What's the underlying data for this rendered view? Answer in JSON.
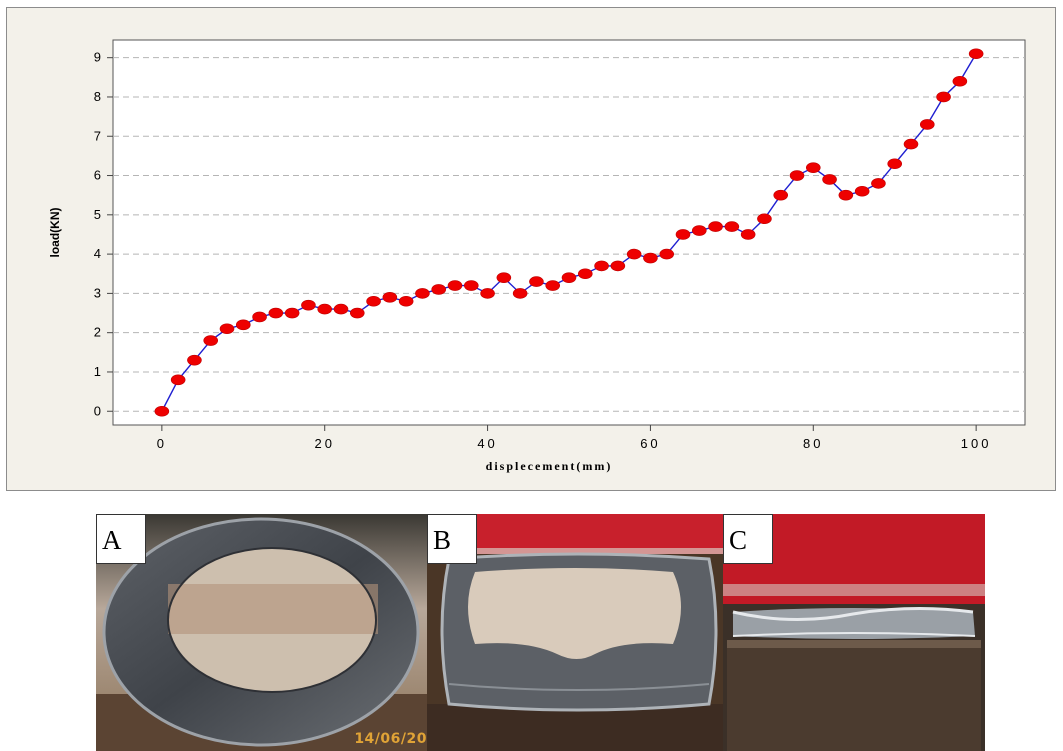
{
  "chart_data": {
    "type": "line",
    "title": "",
    "xlabel": "displecement(mm)",
    "ylabel": "load(KN)",
    "xlim": [
      -6,
      106
    ],
    "ylim": [
      -0.35,
      9.45
    ],
    "xticks": [
      0,
      20,
      40,
      60,
      80,
      100
    ],
    "yticks": [
      0,
      1,
      2,
      3,
      4,
      5,
      6,
      7,
      8,
      9
    ],
    "grid": "horizontal dashed",
    "line_color": "#1f1fd1",
    "marker_color": "#ee0000",
    "series": [
      {
        "x": [
          0,
          2,
          4,
          6,
          8,
          10,
          12,
          14,
          16,
          18,
          20,
          22,
          24,
          26,
          28,
          30,
          32,
          34,
          36,
          38,
          40,
          42,
          44,
          46,
          48,
          50,
          52,
          54,
          56,
          58,
          60,
          62,
          64,
          66,
          68,
          70,
          72,
          74,
          76,
          78,
          80,
          82,
          84,
          86,
          88,
          90,
          92,
          94,
          96,
          98,
          100
        ],
        "values": [
          0,
          0.8,
          1.3,
          1.8,
          2.1,
          2.2,
          2.4,
          2.5,
          2.5,
          2.7,
          2.6,
          2.6,
          2.5,
          2.8,
          2.9,
          2.8,
          3.0,
          3.1,
          3.2,
          3.2,
          3.0,
          3.4,
          3.0,
          3.3,
          3.2,
          3.4,
          3.5,
          3.7,
          3.7,
          4.0,
          3.9,
          4.0,
          4.5,
          4.6,
          4.7,
          4.7,
          4.5,
          4.9,
          5.5,
          6.0,
          6.2,
          5.9,
          5.5,
          5.6,
          5.8,
          6.3,
          6.8,
          7.3,
          8.0,
          8.4,
          9.1
        ]
      }
    ]
  },
  "photos": [
    {
      "label": "A",
      "stamp": "14/06/20"
    },
    {
      "label": "B",
      "stamp": ""
    },
    {
      "label": "C",
      "stamp": ""
    }
  ]
}
